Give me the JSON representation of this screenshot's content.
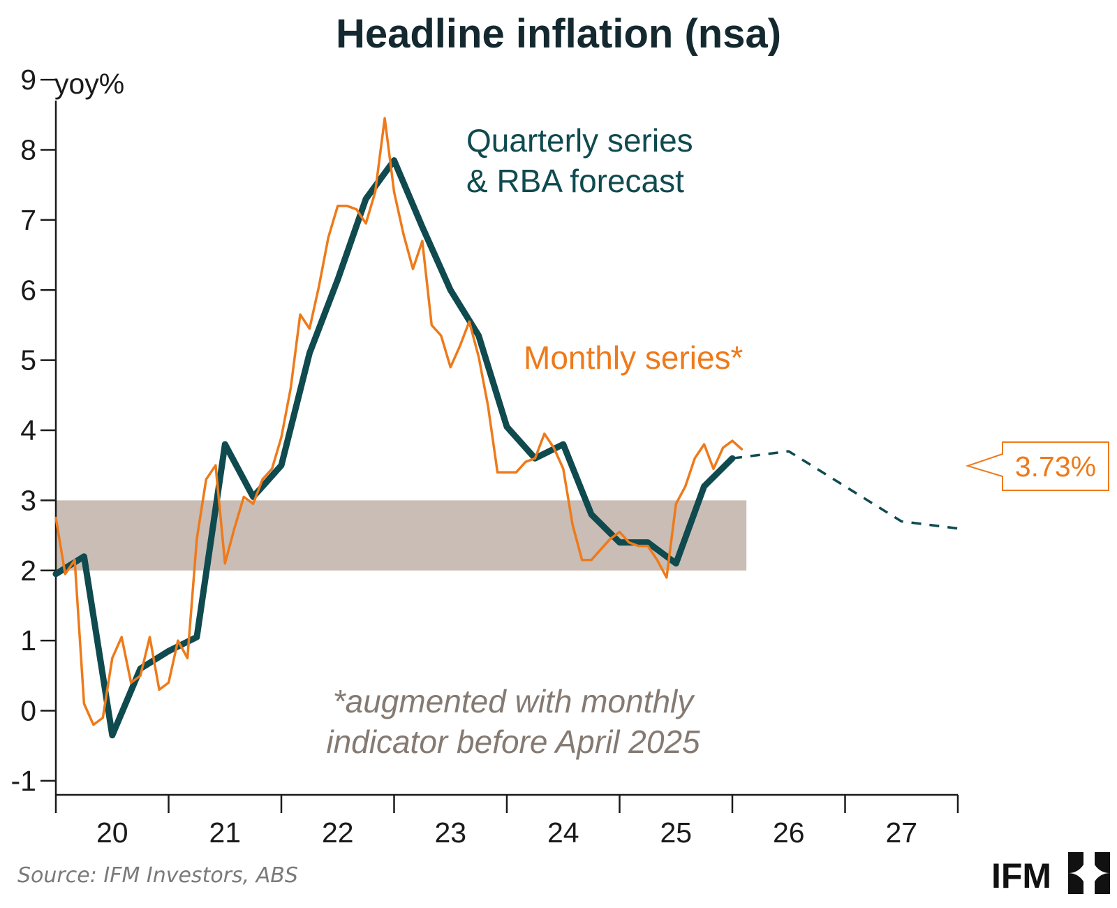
{
  "chart_data": {
    "type": "line",
    "title": "Headline inflation (nsa)",
    "ylabel": "yoy%",
    "xlabel": "",
    "ylim": [
      -1.2,
      9.3
    ],
    "yticks": [
      -1,
      0,
      1,
      2,
      3,
      4,
      5,
      6,
      7,
      8,
      9
    ],
    "xlim": [
      2020,
      2028
    ],
    "xticks": [
      2020,
      2021,
      2022,
      2023,
      2024,
      2025,
      2026,
      2027,
      2028
    ],
    "xtick_labels": [
      {
        "label": "20",
        "x": 2020.5
      },
      {
        "label": "21",
        "x": 2021.5
      },
      {
        "label": "22",
        "x": 2022.5
      },
      {
        "label": "23",
        "x": 2023.5
      },
      {
        "label": "24",
        "x": 2024.5
      },
      {
        "label": "25",
        "x": 2025.5
      },
      {
        "label": "26",
        "x": 2026.5
      },
      {
        "label": "27",
        "x": 2027.5
      }
    ],
    "target_band": {
      "low": 2,
      "high": 3,
      "x_start": 2020,
      "x_end": 2026.125
    },
    "series": [
      {
        "name": "Quarterly series",
        "color": "#0f4a4f",
        "points": [
          [
            2020.0,
            1.95
          ],
          [
            2020.25,
            2.2
          ],
          [
            2020.5,
            -0.35
          ],
          [
            2020.75,
            0.6
          ],
          [
            2021.0,
            0.85
          ],
          [
            2021.25,
            1.05
          ],
          [
            2021.5,
            3.8
          ],
          [
            2021.75,
            3.05
          ],
          [
            2022.0,
            3.5
          ],
          [
            2022.25,
            5.1
          ],
          [
            2022.5,
            6.15
          ],
          [
            2022.75,
            7.3
          ],
          [
            2023.0,
            7.85
          ],
          [
            2023.25,
            6.9
          ],
          [
            2023.5,
            6.0
          ],
          [
            2023.75,
            5.35
          ],
          [
            2024.0,
            4.05
          ],
          [
            2024.25,
            3.6
          ],
          [
            2024.5,
            3.8
          ],
          [
            2024.75,
            2.8
          ],
          [
            2025.0,
            2.4
          ],
          [
            2025.25,
            2.4
          ],
          [
            2025.5,
            2.1
          ],
          [
            2025.75,
            3.2
          ],
          [
            2026.0,
            3.6
          ]
        ]
      },
      {
        "name": "RBA forecast",
        "color": "#0f4a4f",
        "dashed": true,
        "points": [
          [
            2026.0,
            3.6
          ],
          [
            2026.5,
            3.7
          ],
          [
            2027.0,
            3.2
          ],
          [
            2027.5,
            2.7
          ],
          [
            2028.0,
            2.6
          ]
        ]
      },
      {
        "name": "Monthly series*",
        "color": "#ee7a1a",
        "points": [
          [
            2020.0,
            2.75
          ],
          [
            2020.083,
            1.95
          ],
          [
            2020.167,
            2.15
          ],
          [
            2020.25,
            0.1
          ],
          [
            2020.333,
            -0.2
          ],
          [
            2020.417,
            -0.1
          ],
          [
            2020.5,
            0.75
          ],
          [
            2020.583,
            1.05
          ],
          [
            2020.667,
            0.4
          ],
          [
            2020.75,
            0.5
          ],
          [
            2020.833,
            1.05
          ],
          [
            2020.917,
            0.3
          ],
          [
            2021.0,
            0.4
          ],
          [
            2021.083,
            1.0
          ],
          [
            2021.167,
            0.75
          ],
          [
            2021.25,
            2.45
          ],
          [
            2021.333,
            3.3
          ],
          [
            2021.417,
            3.5
          ],
          [
            2021.5,
            2.1
          ],
          [
            2021.583,
            2.6
          ],
          [
            2021.667,
            3.05
          ],
          [
            2021.75,
            2.95
          ],
          [
            2021.833,
            3.3
          ],
          [
            2021.917,
            3.45
          ],
          [
            2022.0,
            3.9
          ],
          [
            2022.083,
            4.6
          ],
          [
            2022.167,
            5.65
          ],
          [
            2022.25,
            5.45
          ],
          [
            2022.333,
            6.05
          ],
          [
            2022.417,
            6.75
          ],
          [
            2022.5,
            7.2
          ],
          [
            2022.583,
            7.2
          ],
          [
            2022.667,
            7.15
          ],
          [
            2022.75,
            6.95
          ],
          [
            2022.833,
            7.4
          ],
          [
            2022.917,
            8.45
          ],
          [
            2023.0,
            7.4
          ],
          [
            2023.083,
            6.8
          ],
          [
            2023.167,
            6.3
          ],
          [
            2023.25,
            6.7
          ],
          [
            2023.333,
            5.5
          ],
          [
            2023.417,
            5.35
          ],
          [
            2023.5,
            4.9
          ],
          [
            2023.583,
            5.2
          ],
          [
            2023.667,
            5.55
          ],
          [
            2023.75,
            5.05
          ],
          [
            2023.833,
            4.35
          ],
          [
            2023.917,
            3.4
          ],
          [
            2024.0,
            3.4
          ],
          [
            2024.083,
            3.4
          ],
          [
            2024.167,
            3.55
          ],
          [
            2024.25,
            3.6
          ],
          [
            2024.333,
            3.95
          ],
          [
            2024.417,
            3.75
          ],
          [
            2024.5,
            3.45
          ],
          [
            2024.583,
            2.65
          ],
          [
            2024.667,
            2.15
          ],
          [
            2024.75,
            2.15
          ],
          [
            2024.833,
            2.3
          ],
          [
            2024.917,
            2.45
          ],
          [
            2025.0,
            2.55
          ],
          [
            2025.083,
            2.4
          ],
          [
            2025.167,
            2.35
          ],
          [
            2025.25,
            2.35
          ],
          [
            2025.333,
            2.15
          ],
          [
            2025.417,
            1.9
          ],
          [
            2025.5,
            2.95
          ],
          [
            2025.583,
            3.2
          ],
          [
            2025.667,
            3.6
          ],
          [
            2025.75,
            3.8
          ],
          [
            2025.833,
            3.45
          ],
          [
            2025.917,
            3.75
          ],
          [
            2026.0,
            3.85
          ],
          [
            2026.083,
            3.73
          ]
        ]
      }
    ],
    "annotations": {
      "quarterly_line1": "Quarterly series",
      "quarterly_line2": "& RBA forecast",
      "monthly": "Monthly series*",
      "note_line1": "*augmented with monthly",
      "note_line2": "indicator before April 2025"
    },
    "callout": {
      "text": "3.73%",
      "value": 3.73
    }
  },
  "footer": {
    "source": "Source: IFM Investors, ABS",
    "logo": "IFM"
  },
  "colors": {
    "quarterly": "#0f4a4f",
    "monthly": "#ee7a1a",
    "band": "#c9bdb5",
    "note": "#857a72",
    "source": "#7a7a7a",
    "axis": "#1a1a1a"
  }
}
